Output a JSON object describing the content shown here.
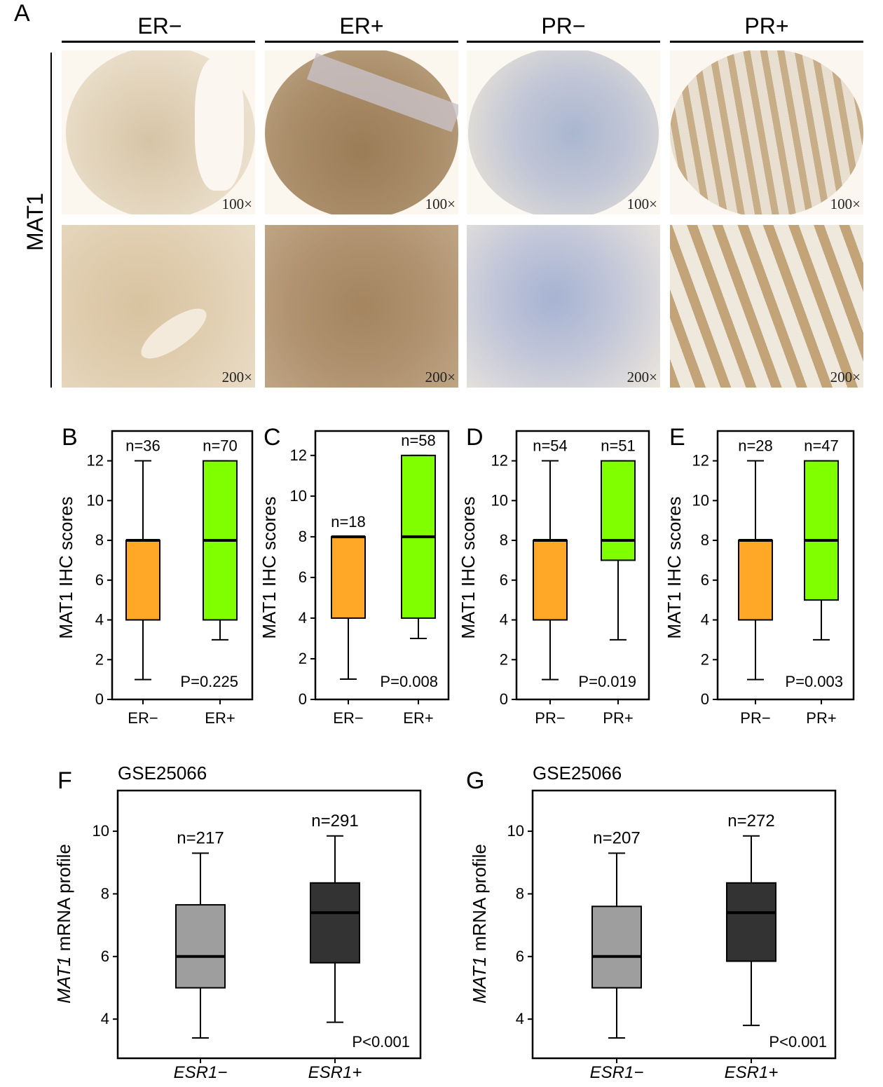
{
  "panel_a": {
    "letter": "A",
    "row_label": "MAT1",
    "columns": [
      "ER−",
      "ER+",
      "PR−",
      "PR+"
    ],
    "magnifications": [
      "100×",
      "200×"
    ],
    "stain_colors": {
      "ER−": "#ddcdb3",
      "ER+": "#a58a66",
      "PR−": "#b5bfd6",
      "PR+": "#d9c5a8"
    }
  },
  "chart_data": [
    {
      "panel": "B",
      "type": "box",
      "ylabel": "MAT1 IHC scores",
      "ylim": [
        0,
        13.5
      ],
      "yticks": [
        0,
        2,
        4,
        6,
        8,
        10,
        12
      ],
      "categories": [
        "ER−",
        "ER+"
      ],
      "n_labels": [
        "n=36",
        "n=70"
      ],
      "boxes": [
        {
          "min": 1,
          "q1": 4,
          "median": 8,
          "q3": 8,
          "max": 12
        },
        {
          "min": 3,
          "q1": 4,
          "median": 8,
          "q3": 12,
          "max": 12
        }
      ],
      "colors": [
        "#ffa726",
        "#80ff00"
      ],
      "p_text": "P=0.225"
    },
    {
      "panel": "C",
      "type": "box",
      "ylabel": "MAT1 IHC scores",
      "ylim": [
        0,
        13.2
      ],
      "yticks": [
        0,
        2,
        4,
        6,
        8,
        10,
        12
      ],
      "categories": [
        "ER−",
        "ER+"
      ],
      "n_labels": [
        "n=18",
        "n=58"
      ],
      "boxes": [
        {
          "min": 1,
          "q1": 4,
          "median": 8,
          "q3": 8,
          "max": 8
        },
        {
          "min": 3,
          "q1": 4,
          "median": 8,
          "q3": 12,
          "max": 12
        }
      ],
      "colors": [
        "#ffa726",
        "#80ff00"
      ],
      "p_text": "P=0.008"
    },
    {
      "panel": "D",
      "type": "box",
      "ylabel": "MAT1 IHC scores",
      "ylim": [
        0,
        13.5
      ],
      "yticks": [
        0,
        2,
        4,
        6,
        8,
        10,
        12
      ],
      "categories": [
        "PR−",
        "PR+"
      ],
      "n_labels": [
        "n=54",
        "n=51"
      ],
      "boxes": [
        {
          "min": 1,
          "q1": 4,
          "median": 8,
          "q3": 8,
          "max": 12
        },
        {
          "min": 3,
          "q1": 7,
          "median": 8,
          "q3": 12,
          "max": 12
        }
      ],
      "colors": [
        "#ffa726",
        "#80ff00"
      ],
      "p_text": "P=0.019"
    },
    {
      "panel": "E",
      "type": "box",
      "ylabel": "MAT1 IHC scores",
      "ylim": [
        0,
        13.5
      ],
      "yticks": [
        0,
        2,
        4,
        6,
        8,
        10,
        12
      ],
      "categories": [
        "PR−",
        "PR+"
      ],
      "n_labels": [
        "n=28",
        "n=47"
      ],
      "boxes": [
        {
          "min": 1,
          "q1": 4,
          "median": 8,
          "q3": 8,
          "max": 12
        },
        {
          "min": 3,
          "q1": 5,
          "median": 8,
          "q3": 12,
          "max": 12
        }
      ],
      "colors": [
        "#ffa726",
        "#80ff00"
      ],
      "p_text": "P=0.003"
    },
    {
      "panel": "F",
      "type": "box",
      "title": "GSE25066",
      "ylabel_italic": "MAT1",
      "ylabel_rest": " mRNA profile",
      "ylim": [
        2.75,
        11.3
      ],
      "yticks": [
        4,
        6,
        8,
        10
      ],
      "categories": [
        "ESR1−",
        "ESR1+"
      ],
      "n_labels": [
        "n=217",
        "n=291"
      ],
      "boxes": [
        {
          "min": 3.4,
          "q1": 5.0,
          "median": 6.0,
          "q3": 7.65,
          "max": 9.3
        },
        {
          "min": 3.9,
          "q1": 5.8,
          "median": 7.4,
          "q3": 8.35,
          "max": 9.85
        }
      ],
      "colors": [
        "#9e9e9e",
        "#333333"
      ],
      "p_text": "P<0.001"
    },
    {
      "panel": "G",
      "type": "box",
      "title": "GSE25066",
      "ylabel_italic": "MAT1",
      "ylabel_rest": " mRNA profile",
      "ylim": [
        2.75,
        11.3
      ],
      "yticks": [
        4,
        6,
        8,
        10
      ],
      "categories": [
        "ESR1−",
        "ESR1+"
      ],
      "n_labels": [
        "n=207",
        "n=272"
      ],
      "boxes": [
        {
          "min": 3.4,
          "q1": 5.0,
          "median": 6.0,
          "q3": 7.6,
          "max": 9.3
        },
        {
          "min": 3.8,
          "q1": 5.85,
          "median": 7.4,
          "q3": 8.35,
          "max": 9.85
        }
      ],
      "colors": [
        "#9e9e9e",
        "#333333"
      ],
      "p_text": "P<0.001"
    }
  ]
}
